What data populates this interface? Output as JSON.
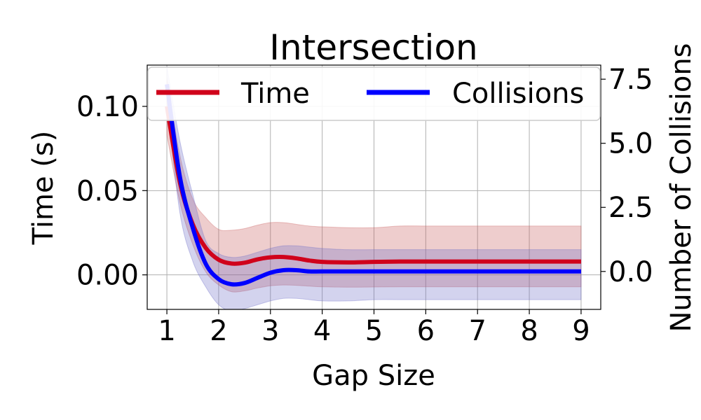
{
  "chart_data": {
    "type": "line",
    "title": "Intersection",
    "xlabel": "Gap Size",
    "ylabel_left": "Time (s)",
    "ylabel_right": "Number of Collisions",
    "x_ticks": [
      "1",
      "2",
      "3",
      "4",
      "5",
      "6",
      "7",
      "8",
      "9"
    ],
    "y_left_ticks": [
      "0.00",
      "0.05",
      "0.10"
    ],
    "y_right_ticks": [
      "0.0",
      "2.5",
      "5.0",
      "7.5"
    ],
    "xlim": [
      0.62,
      9.38
    ],
    "ylim_left": [
      -0.0205,
      0.1245
    ],
    "ylim_right": [
      -1.48,
      8.05
    ],
    "grid": true,
    "legend_position": "top",
    "x": [
      1.0,
      1.25,
      1.5,
      1.75,
      2.0,
      2.25,
      2.5,
      2.75,
      3.0,
      3.25,
      3.5,
      3.75,
      4.0,
      4.5,
      5.0,
      5.5,
      6.0,
      6.5,
      7.0,
      7.5,
      8.0,
      8.5,
      9.0
    ],
    "series": [
      {
        "name": "Time",
        "axis": "left",
        "color": "#d0021b",
        "values": [
          0.1,
          0.055,
          0.03,
          0.016,
          0.009,
          0.0067,
          0.0072,
          0.0092,
          0.0104,
          0.0106,
          0.0098,
          0.0085,
          0.0077,
          0.0074,
          0.0077,
          0.0079,
          0.0079,
          0.0079,
          0.0079,
          0.0079,
          0.0079,
          0.0079,
          0.0079
        ],
        "band_lower": [
          0.083,
          0.043,
          0.018,
          0.0018,
          -0.006,
          -0.01,
          -0.0095,
          -0.0078,
          -0.0065,
          -0.006,
          -0.0062,
          -0.0067,
          -0.0071,
          -0.0073,
          -0.0072,
          -0.0071,
          -0.0071,
          -0.0071,
          -0.0071,
          -0.0071,
          -0.0071,
          -0.0071,
          -0.0071
        ],
        "band_upper": [
          0.117,
          0.071,
          0.045,
          0.034,
          0.027,
          0.0265,
          0.0275,
          0.0295,
          0.031,
          0.031,
          0.03,
          0.029,
          0.0285,
          0.028,
          0.028,
          0.029,
          0.029,
          0.029,
          0.029,
          0.029,
          0.029,
          0.029,
          0.029
        ]
      },
      {
        "name": "Collisions",
        "axis": "right",
        "color": "#0000ff",
        "values": [
          7.3,
          3.7,
          1.7,
          0.3,
          -0.3,
          -0.5,
          -0.45,
          -0.25,
          -0.05,
          0.05,
          0.05,
          0.0,
          0.0,
          0.0,
          0.0,
          0.0,
          0.0,
          0.0,
          0.0,
          0.0,
          0.0,
          0.0,
          0.0
        ],
        "band_lower": [
          6.6,
          2.3,
          0.4,
          -0.6,
          -1.3,
          -1.55,
          -1.45,
          -1.3,
          -1.15,
          -1.05,
          -1.05,
          -1.1,
          -1.15,
          -1.15,
          -1.1,
          -1.1,
          -1.1,
          -1.1,
          -1.1,
          -1.1,
          -1.1,
          -1.1,
          -1.1
        ],
        "band_upper": [
          8.0,
          5.1,
          3.0,
          1.2,
          0.7,
          0.55,
          0.6,
          0.75,
          0.9,
          1.0,
          1.0,
          0.95,
          0.9,
          0.85,
          0.85,
          0.85,
          0.85,
          0.85,
          0.85,
          0.85,
          0.85,
          0.85,
          0.85
        ]
      }
    ]
  }
}
